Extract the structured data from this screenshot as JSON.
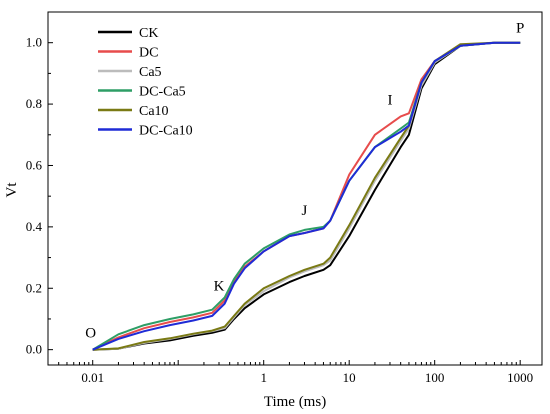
{
  "chart_data": {
    "type": "line",
    "xlabel": "Time (ms)",
    "ylabel": "Vt",
    "x_scale": "log",
    "xlim": [
      0.003,
      1800
    ],
    "ylim": [
      -0.05,
      1.1
    ],
    "x_ticks": [
      0.01,
      1,
      10,
      100,
      1000
    ],
    "x_tick_labels": [
      "0.01",
      "1",
      "10",
      "100",
      "1000"
    ],
    "y_ticks": [
      0.0,
      0.2,
      0.4,
      0.6,
      0.8,
      1.0
    ],
    "y_tick_labels": [
      "0.0",
      "0.2",
      "0.4",
      "0.6",
      "0.8",
      "1.0"
    ],
    "grid": false,
    "legend_position": "top-left",
    "annotations": [
      {
        "text": "O",
        "x": 0.01,
        "y": 0.0
      },
      {
        "text": "K",
        "x": 0.3,
        "y": 0.16
      },
      {
        "text": "J",
        "x": 3,
        "y": 0.4
      },
      {
        "text": "I",
        "x": 30,
        "y": 0.76
      },
      {
        "text": "P",
        "x": 1000,
        "y": 1.0
      }
    ],
    "series": [
      {
        "name": "CK",
        "color": "#000000",
        "x": [
          0.01,
          0.02,
          0.04,
          0.08,
          0.15,
          0.25,
          0.35,
          0.45,
          0.6,
          1,
          2,
          3,
          5,
          6,
          10,
          20,
          40,
          50,
          70,
          100,
          200,
          500,
          1000
        ],
        "y": [
          0.0,
          0.003,
          0.02,
          0.03,
          0.045,
          0.055,
          0.065,
          0.1,
          0.135,
          0.18,
          0.22,
          0.24,
          0.26,
          0.275,
          0.37,
          0.52,
          0.66,
          0.7,
          0.85,
          0.93,
          0.99,
          1.0,
          1.0
        ]
      },
      {
        "name": "DC",
        "color": "#e74c4c",
        "x": [
          0.01,
          0.02,
          0.04,
          0.08,
          0.15,
          0.25,
          0.35,
          0.45,
          0.6,
          1,
          2,
          3,
          5,
          6,
          10,
          20,
          40,
          50,
          70,
          100,
          200,
          500,
          1000
        ],
        "y": [
          0.0,
          0.04,
          0.07,
          0.09,
          0.105,
          0.12,
          0.16,
          0.22,
          0.27,
          0.32,
          0.37,
          0.38,
          0.395,
          0.42,
          0.57,
          0.7,
          0.76,
          0.77,
          0.88,
          0.94,
          0.99,
          1.0,
          1.0
        ]
      },
      {
        "name": "Ca5",
        "color": "#bcbcbc",
        "x": [
          0.01,
          0.02,
          0.04,
          0.08,
          0.15,
          0.25,
          0.35,
          0.45,
          0.6,
          1,
          2,
          3,
          5,
          6,
          10,
          20,
          40,
          50,
          70,
          100,
          200,
          500,
          1000
        ],
        "y": [
          0.0,
          0.003,
          0.022,
          0.035,
          0.05,
          0.06,
          0.07,
          0.105,
          0.145,
          0.19,
          0.235,
          0.255,
          0.275,
          0.29,
          0.395,
          0.55,
          0.68,
          0.72,
          0.86,
          0.935,
          0.99,
          1.0,
          1.0
        ]
      },
      {
        "name": "DC-Ca5",
        "color": "#2e9e66",
        "x": [
          0.01,
          0.02,
          0.04,
          0.08,
          0.15,
          0.25,
          0.35,
          0.45,
          0.6,
          1,
          2,
          3,
          5,
          6,
          10,
          20,
          40,
          50,
          70,
          100,
          200,
          500,
          1000
        ],
        "y": [
          0.0,
          0.05,
          0.08,
          0.1,
          0.115,
          0.13,
          0.17,
          0.23,
          0.28,
          0.33,
          0.375,
          0.39,
          0.4,
          0.42,
          0.55,
          0.66,
          0.72,
          0.74,
          0.87,
          0.94,
          0.99,
          1.0,
          1.0
        ]
      },
      {
        "name": "Ca10",
        "color": "#7a7a14",
        "x": [
          0.01,
          0.02,
          0.04,
          0.08,
          0.15,
          0.25,
          0.35,
          0.45,
          0.6,
          1,
          2,
          3,
          5,
          6,
          10,
          20,
          40,
          50,
          70,
          100,
          200,
          500,
          1000
        ],
        "y": [
          0.0,
          0.004,
          0.025,
          0.037,
          0.052,
          0.062,
          0.075,
          0.11,
          0.15,
          0.2,
          0.24,
          0.26,
          0.28,
          0.3,
          0.405,
          0.56,
          0.69,
          0.73,
          0.87,
          0.94,
          0.995,
          1.0,
          1.0
        ]
      },
      {
        "name": "DC-Ca10",
        "color": "#1f2bd6",
        "x": [
          0.01,
          0.02,
          0.04,
          0.08,
          0.15,
          0.25,
          0.35,
          0.45,
          0.6,
          1,
          2,
          3,
          5,
          6,
          10,
          20,
          40,
          50,
          70,
          100,
          200,
          500,
          1000
        ],
        "y": [
          0.0,
          0.035,
          0.06,
          0.08,
          0.095,
          0.11,
          0.15,
          0.215,
          0.265,
          0.32,
          0.37,
          0.38,
          0.395,
          0.42,
          0.55,
          0.66,
          0.71,
          0.73,
          0.87,
          0.94,
          0.99,
          1.0,
          1.0
        ]
      }
    ]
  }
}
